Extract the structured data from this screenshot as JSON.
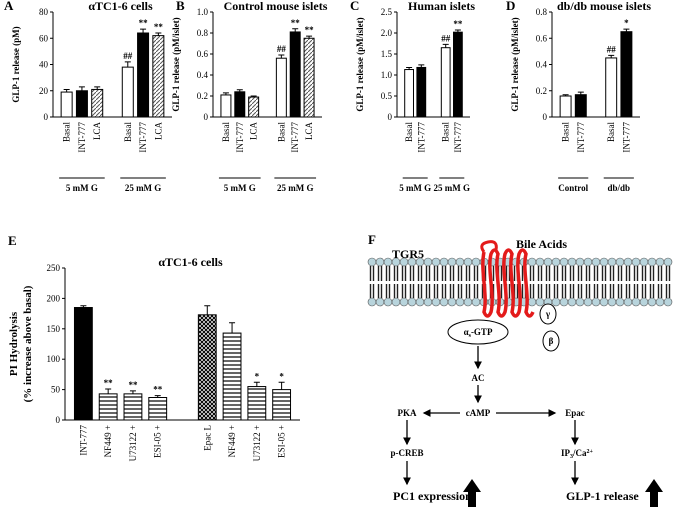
{
  "chart_data": [
    {
      "type": "bar",
      "panel": "A",
      "title": "αTC1-6 cells",
      "y_label": "GLP-1 release (pM)",
      "ylim": [
        0,
        80
      ],
      "yticks": [
        0,
        20,
        40,
        60,
        80
      ],
      "categories": [
        "Basal",
        "INT-777",
        "LCA",
        "Basal",
        "INT-777",
        "LCA"
      ],
      "values": [
        19,
        20,
        21,
        38,
        64,
        62
      ],
      "errors": [
        2,
        3,
        2,
        4,
        3,
        2
      ],
      "bar_styles": [
        "white",
        "black",
        "hatched",
        "white",
        "black",
        "hatched"
      ],
      "annotations": [
        null,
        null,
        null,
        "##",
        "**",
        "**"
      ],
      "group_labels": [
        "5 mM G",
        "25 mM G"
      ]
    },
    {
      "type": "bar",
      "panel": "B",
      "title": "Control mouse islets",
      "y_label": "GLP-1 release (pM/islet)",
      "ylim": [
        0,
        1
      ],
      "yticks": [
        0,
        0.2,
        0.4,
        0.6,
        0.8,
        {
          "value": 1,
          "label": "1.0"
        }
      ],
      "categories": [
        "Basal",
        "INT-777",
        "LCA",
        "Basal",
        "INT-777",
        "LCA"
      ],
      "values": [
        0.21,
        0.24,
        0.19,
        0.56,
        0.81,
        0.75
      ],
      "errors": [
        0.02,
        0.02,
        0.01,
        0.03,
        0.03,
        0.02
      ],
      "bar_styles": [
        "white",
        "black",
        "hatched",
        "white",
        "black",
        "hatched"
      ],
      "annotations": [
        null,
        null,
        null,
        "##",
        "**",
        "**"
      ],
      "group_labels": [
        "5 mM G",
        "25 mM G"
      ]
    },
    {
      "type": "bar",
      "panel": "C",
      "title": "Human islets",
      "y_label": "GLP-1 release (pM/islet)",
      "ylim": [
        0,
        2.5
      ],
      "yticks": [
        0,
        0.5,
        {
          "value": 1,
          "label": "1.0"
        },
        1.5,
        {
          "value": 2,
          "label": "2.0"
        },
        2.5
      ],
      "categories": [
        "Basal",
        "INT-777",
        "Basal",
        "INT-777"
      ],
      "values": [
        1.13,
        1.18,
        1.65,
        2.02
      ],
      "errors": [
        0.05,
        0.06,
        0.08,
        0.05
      ],
      "bar_styles": [
        "white",
        "black",
        "white",
        "black"
      ],
      "annotations": [
        null,
        null,
        "##",
        "**"
      ],
      "group_labels": [
        "5 mM G",
        "25 mM G"
      ]
    },
    {
      "type": "bar",
      "panel": "D",
      "title": "db/db mouse islets",
      "y_label": "GLP-1 release (pM/islet)",
      "ylim": [
        0,
        0.8
      ],
      "yticks": [
        0,
        0.2,
        0.4,
        0.6,
        0.8
      ],
      "categories": [
        "Basal",
        "INT-777",
        "Basal",
        "INT-777"
      ],
      "values": [
        0.16,
        0.17,
        0.45,
        0.65
      ],
      "errors": [
        0.01,
        0.02,
        0.02,
        0.02
      ],
      "bar_styles": [
        "white",
        "black",
        "white",
        "black"
      ],
      "annotations": [
        null,
        null,
        "##",
        "*"
      ],
      "group_labels": [
        "Control",
        "db/db"
      ]
    },
    {
      "type": "bar",
      "panel": "E",
      "title": "αTC1-6 cells",
      "y_label": [
        "PI Hydrolysis",
        "(% increase above basal)"
      ],
      "ylim": [
        0,
        250
      ],
      "yticks": [
        0,
        50,
        100,
        150,
        200,
        250
      ],
      "categories": [
        "INT-777",
        "NF449 +",
        "U73122 +",
        "ESI-05 +",
        "Epac L",
        "NF449 +",
        "U73122 +",
        "ESI-05 +"
      ],
      "values": [
        185,
        43,
        43,
        37,
        173,
        143,
        55,
        50
      ],
      "errors": [
        3,
        8,
        5,
        3,
        15,
        17,
        7,
        12
      ],
      "bar_styles": [
        "black",
        "striped",
        "striped",
        "striped",
        "crosshatch",
        "striped",
        "striped",
        "striped"
      ],
      "annotations": [
        null,
        "**",
        "**",
        "**",
        null,
        null,
        "*",
        "*"
      ]
    }
  ],
  "diagram": {
    "panel": "F",
    "receptor": "TGR5",
    "ligand": "Bile Acids",
    "g_alpha": [
      "α",
      "s",
      "-GTP"
    ],
    "g_gamma": "γ",
    "g_beta": "β",
    "ac": "AC",
    "camp": "cAMP",
    "pka": "PKA",
    "epac": "Epac",
    "creb": "p-CREB",
    "ip3": [
      "IP",
      "3",
      "/Ca",
      "2+"
    ],
    "out_left": "PC1 expression",
    "out_right": "GLP-1 release"
  }
}
